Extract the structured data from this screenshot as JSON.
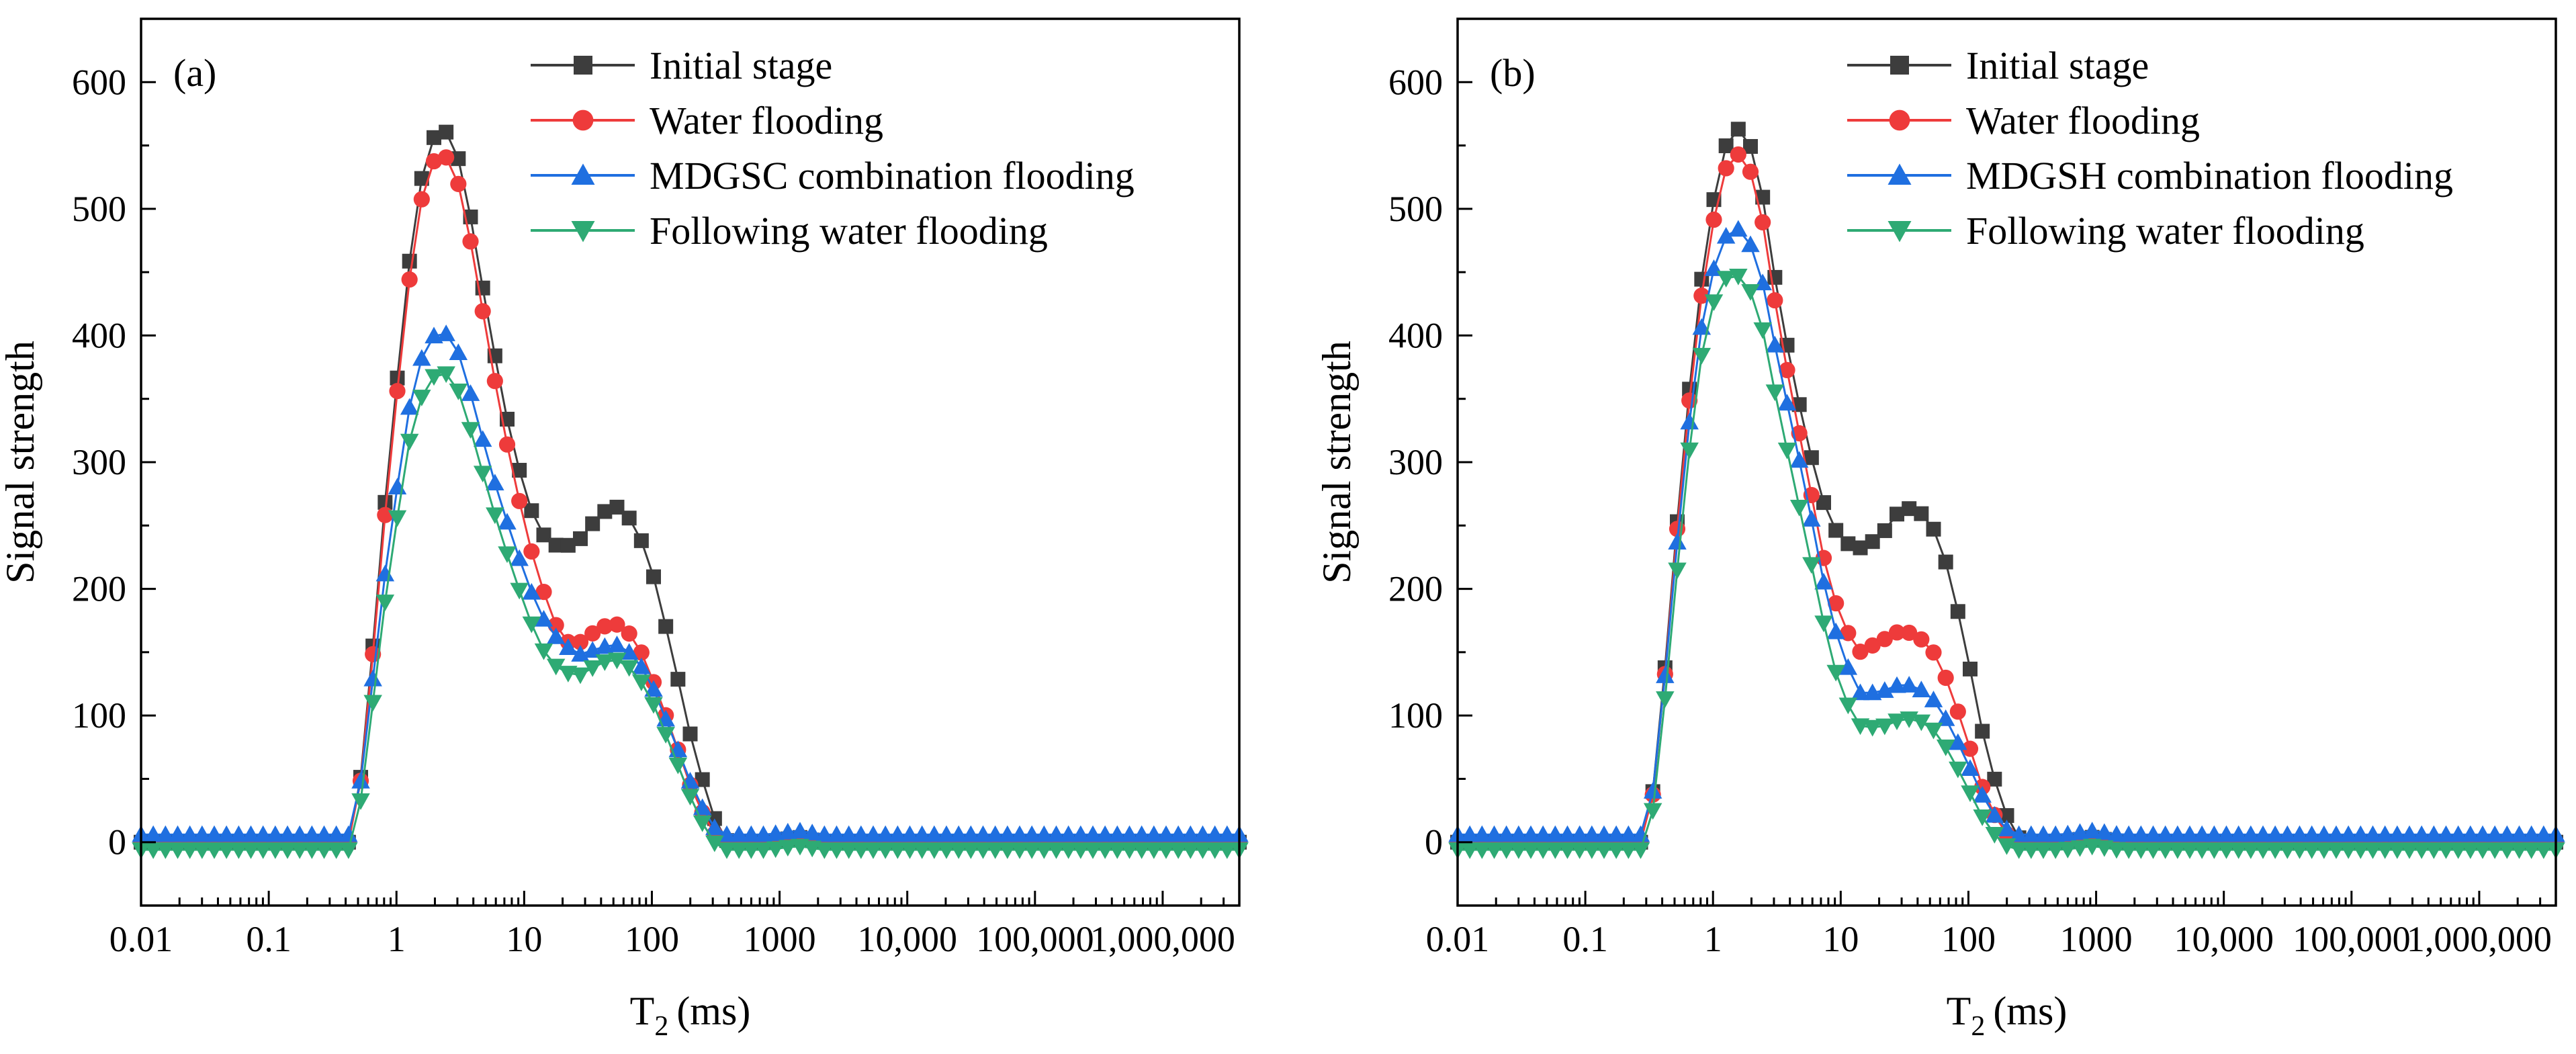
{
  "chart_data": [
    {
      "type": "scatter",
      "panel_label": "(a)",
      "xlabel": "T",
      "xlabel_sub": "2",
      "xlabel_unit": "(ms)",
      "ylabel": "Signal strength",
      "xscale": "log",
      "xlim": [
        0.01,
        3981071
      ],
      "ylim": [
        -50,
        650
      ],
      "xticks": [
        0.01,
        0.1,
        1,
        10,
        100,
        1000,
        10000,
        100000,
        1000000
      ],
      "xtick_labels": [
        "0.01",
        "0.1",
        "1",
        "10",
        "100",
        "1000",
        "10,000",
        "100,000",
        "1,000,000"
      ],
      "yticks": [
        0,
        100,
        200,
        300,
        400,
        500,
        600
      ],
      "ytick_labels": [
        "0",
        "100",
        "200",
        "300",
        "400",
        "500",
        "600"
      ],
      "legend_position": "top-right",
      "series": [
        {
          "name": "Initial stage",
          "marker": "square",
          "color": "#3d3d3d",
          "offset": 0,
          "points": [
            [
              0.01,
              0
            ],
            [
              0.45,
              0
            ],
            [
              0.5,
              30
            ],
            [
              0.6,
              110
            ],
            [
              0.8,
              260
            ],
            [
              1.0,
              360
            ],
            [
              1.3,
              470
            ],
            [
              1.7,
              545
            ],
            [
              2.2,
              565
            ],
            [
              2.8,
              555
            ],
            [
              3.5,
              515
            ],
            [
              4.5,
              450
            ],
            [
              6,
              380
            ],
            [
              8,
              315
            ],
            [
              11,
              265
            ],
            [
              15,
              238
            ],
            [
              20,
              232
            ],
            [
              28,
              240
            ],
            [
              40,
              260
            ],
            [
              55,
              265
            ],
            [
              75,
              250
            ],
            [
              100,
              215
            ],
            [
              140,
              155
            ],
            [
              200,
              85
            ],
            [
              280,
              30
            ],
            [
              350,
              5
            ],
            [
              400,
              0
            ],
            [
              800,
              0
            ],
            [
              1400,
              4
            ],
            [
              2200,
              0
            ],
            [
              3981071,
              0
            ]
          ]
        },
        {
          "name": "Water flooding",
          "marker": "circle",
          "color": "#ee3b3b",
          "offset": 0,
          "points": [
            [
              0.01,
              0
            ],
            [
              0.45,
              0
            ],
            [
              0.5,
              28
            ],
            [
              0.6,
              105
            ],
            [
              0.8,
              250
            ],
            [
              1.0,
              350
            ],
            [
              1.3,
              455
            ],
            [
              1.7,
              528
            ],
            [
              2.2,
              545
            ],
            [
              2.8,
              535
            ],
            [
              3.5,
              495
            ],
            [
              4.5,
              432
            ],
            [
              6,
              360
            ],
            [
              8,
              295
            ],
            [
              11,
              235
            ],
            [
              15,
              190
            ],
            [
              20,
              158
            ],
            [
              28,
              158
            ],
            [
              40,
              170
            ],
            [
              55,
              172
            ],
            [
              75,
              160
            ],
            [
              100,
              130
            ],
            [
              140,
              90
            ],
            [
              200,
              45
            ],
            [
              280,
              12
            ],
            [
              350,
              0
            ],
            [
              800,
              0
            ],
            [
              1400,
              3
            ],
            [
              2200,
              0
            ],
            [
              3981071,
              0
            ]
          ]
        },
        {
          "name": "MDGSC combination flooding",
          "marker": "triangle-up",
          "color": "#1f6fe0",
          "offset": 6,
          "points": [
            [
              0.01,
              0
            ],
            [
              0.45,
              0
            ],
            [
              0.5,
              25
            ],
            [
              0.6,
              90
            ],
            [
              0.8,
              200
            ],
            [
              1.0,
              270
            ],
            [
              1.3,
              345
            ],
            [
              1.7,
              388
            ],
            [
              2.2,
              398
            ],
            [
              2.8,
              392
            ],
            [
              3.5,
              362
            ],
            [
              4.5,
              320
            ],
            [
              6,
              275
            ],
            [
              8,
              235
            ],
            [
              11,
              195
            ],
            [
              15,
              165
            ],
            [
              20,
              150
            ],
            [
              28,
              142
            ],
            [
              40,
              148
            ],
            [
              55,
              150
            ],
            [
              75,
              140
            ],
            [
              100,
              118
            ],
            [
              140,
              82
            ],
            [
              200,
              42
            ],
            [
              280,
              10
            ],
            [
              350,
              0
            ],
            [
              800,
              0
            ],
            [
              1400,
              3
            ],
            [
              2200,
              0
            ],
            [
              3981071,
              0
            ]
          ]
        },
        {
          "name": "Following water flooding",
          "marker": "triangle-down",
          "color": "#2eaa74",
          "offset": -6,
          "points": [
            [
              0.01,
              0
            ],
            [
              0.45,
              0
            ],
            [
              0.5,
              22
            ],
            [
              0.6,
              85
            ],
            [
              0.8,
              190
            ],
            [
              1.0,
              258
            ],
            [
              1.3,
              330
            ],
            [
              1.7,
              368
            ],
            [
              2.2,
              378
            ],
            [
              2.8,
              373
            ],
            [
              3.5,
              345
            ],
            [
              4.5,
              305
            ],
            [
              6,
              262
            ],
            [
              8,
              222
            ],
            [
              11,
              182
            ],
            [
              15,
              152
            ],
            [
              20,
              140
            ],
            [
              28,
              138
            ],
            [
              40,
              148
            ],
            [
              55,
              150
            ],
            [
              75,
              140
            ],
            [
              100,
              118
            ],
            [
              140,
              82
            ],
            [
              200,
              42
            ],
            [
              280,
              10
            ],
            [
              350,
              0
            ],
            [
              800,
              0
            ],
            [
              1400,
              3
            ],
            [
              2200,
              0
            ],
            [
              3981071,
              0
            ]
          ]
        }
      ]
    },
    {
      "type": "scatter",
      "panel_label": "(b)",
      "xlabel": "T",
      "xlabel_sub": "2",
      "xlabel_unit": "(ms)",
      "ylabel": "Signal strength",
      "xscale": "log",
      "xlim": [
        0.01,
        3981071
      ],
      "ylim": [
        -50,
        650
      ],
      "xticks": [
        0.01,
        0.1,
        1,
        10,
        100,
        1000,
        10000,
        100000,
        1000000
      ],
      "xtick_labels": [
        "0.01",
        "0.1",
        "1",
        "10",
        "100",
        "1000",
        "10,000",
        "100,000",
        "1,000,000"
      ],
      "yticks": [
        0,
        100,
        200,
        300,
        400,
        500,
        600
      ],
      "ytick_labels": [
        "0",
        "100",
        "200",
        "300",
        "400",
        "500",
        "600"
      ],
      "legend_position": "top-right",
      "series": [
        {
          "name": "Initial stage",
          "marker": "square",
          "color": "#3d3d3d",
          "offset": 0,
          "points": [
            [
              0.01,
              0
            ],
            [
              0.3,
              0
            ],
            [
              0.33,
              30
            ],
            [
              0.4,
              110
            ],
            [
              0.5,
              230
            ],
            [
              0.7,
              390
            ],
            [
              0.9,
              480
            ],
            [
              1.2,
              545
            ],
            [
              1.5,
              565
            ],
            [
              1.9,
              555
            ],
            [
              2.4,
              515
            ],
            [
              3,
              450
            ],
            [
              4,
              380
            ],
            [
              5.5,
              315
            ],
            [
              7.5,
              265
            ],
            [
              10,
              238
            ],
            [
              14,
              232
            ],
            [
              20,
              240
            ],
            [
              28,
              260
            ],
            [
              38,
              265
            ],
            [
              52,
              250
            ],
            [
              70,
              215
            ],
            [
              95,
              155
            ],
            [
              130,
              85
            ],
            [
              180,
              30
            ],
            [
              240,
              5
            ],
            [
              270,
              0
            ],
            [
              550,
              0
            ],
            [
              950,
              4
            ],
            [
              1500,
              0
            ],
            [
              3981071,
              0
            ]
          ]
        },
        {
          "name": "Water flooding",
          "marker": "circle",
          "color": "#ee3b3b",
          "offset": 0,
          "points": [
            [
              0.01,
              0
            ],
            [
              0.3,
              0
            ],
            [
              0.33,
              28
            ],
            [
              0.4,
              105
            ],
            [
              0.5,
              225
            ],
            [
              0.7,
              380
            ],
            [
              0.9,
              465
            ],
            [
              1.2,
              528
            ],
            [
              1.5,
              545
            ],
            [
              1.9,
              535
            ],
            [
              2.4,
              495
            ],
            [
              3,
              432
            ],
            [
              4,
              360
            ],
            [
              5.5,
              290
            ],
            [
              7.5,
              220
            ],
            [
              10,
              175
            ],
            [
              14,
              150
            ],
            [
              20,
              158
            ],
            [
              28,
              166
            ],
            [
              38,
              165
            ],
            [
              52,
              152
            ],
            [
              70,
              125
            ],
            [
              95,
              85
            ],
            [
              130,
              42
            ],
            [
              180,
              10
            ],
            [
              240,
              0
            ],
            [
              550,
              0
            ],
            [
              950,
              3
            ],
            [
              1500,
              0
            ],
            [
              3981071,
              0
            ]
          ]
        },
        {
          "name": "MDGSH combination flooding",
          "marker": "triangle-up",
          "color": "#1f6fe0",
          "offset": 6,
          "points": [
            [
              0.01,
              0
            ],
            [
              0.3,
              0
            ],
            [
              0.33,
              25
            ],
            [
              0.4,
              100
            ],
            [
              0.5,
              210
            ],
            [
              0.7,
              355
            ],
            [
              0.9,
              430
            ],
            [
              1.2,
              470
            ],
            [
              1.5,
              480
            ],
            [
              1.9,
              470
            ],
            [
              2.4,
              440
            ],
            [
              3,
              390
            ],
            [
              4,
              330
            ],
            [
              5.5,
              265
            ],
            [
              7.5,
              195
            ],
            [
              10,
              145
            ],
            [
              14,
              112
            ],
            [
              20,
              112
            ],
            [
              28,
              118
            ],
            [
              38,
              118
            ],
            [
              52,
              108
            ],
            [
              70,
              88
            ],
            [
              95,
              60
            ],
            [
              130,
              30
            ],
            [
              180,
              7
            ],
            [
              240,
              0
            ],
            [
              550,
              0
            ],
            [
              950,
              3
            ],
            [
              1500,
              0
            ],
            [
              3981071,
              0
            ]
          ]
        },
        {
          "name": "Following water flooding",
          "marker": "triangle-down",
          "color": "#2eaa74",
          "offset": -6,
          "points": [
            [
              0.01,
              0
            ],
            [
              0.3,
              0
            ],
            [
              0.33,
              22
            ],
            [
              0.4,
              95
            ],
            [
              0.5,
              200
            ],
            [
              0.7,
              345
            ],
            [
              0.9,
              420
            ],
            [
              1.2,
              450
            ],
            [
              1.5,
              455
            ],
            [
              1.9,
              445
            ],
            [
              2.4,
              415
            ],
            [
              3,
              365
            ],
            [
              4,
              305
            ],
            [
              5.5,
              240
            ],
            [
              7.5,
              175
            ],
            [
              10,
              125
            ],
            [
              14,
              98
            ],
            [
              20,
              96
            ],
            [
              28,
              102
            ],
            [
              38,
              104
            ],
            [
              52,
              96
            ],
            [
              70,
              78
            ],
            [
              95,
              52
            ],
            [
              130,
              25
            ],
            [
              180,
              5
            ],
            [
              240,
              0
            ],
            [
              550,
              0
            ],
            [
              950,
              3
            ],
            [
              1500,
              0
            ],
            [
              3981071,
              0
            ]
          ]
        }
      ]
    }
  ]
}
